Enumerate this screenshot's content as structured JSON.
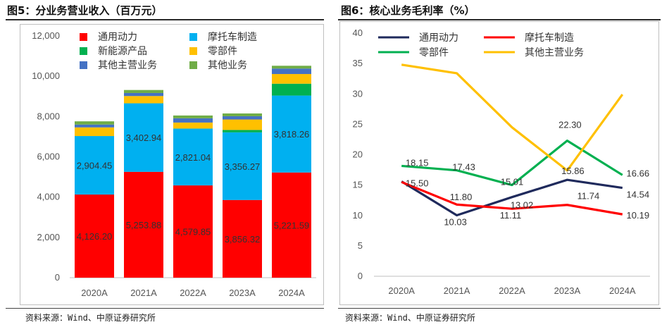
{
  "left": {
    "title": "图5：分业务营业收入（百万元）",
    "source": "资料来源：Wind、中原证券研究所"
  },
  "right": {
    "title": "图6：核心业务毛利率（%）",
    "source": "资料来源：Wind、中原证券研究所"
  },
  "chart_data": [
    {
      "type": "bar",
      "stacked": true,
      "categories": [
        "2020A",
        "2021A",
        "2022A",
        "2023A",
        "2024A"
      ],
      "ylim": [
        0,
        12000
      ],
      "yticks": [
        0,
        2000,
        4000,
        6000,
        8000,
        10000,
        12000
      ],
      "ytick_labels": [
        "0",
        "2,000",
        "4,000",
        "6,000",
        "8,000",
        "10,000",
        "12,000"
      ],
      "legend_position": "top-left",
      "series": [
        {
          "name": "通用动力",
          "color": "#ff0000",
          "values": [
            4126.2,
            5253.88,
            4579.85,
            3856.32,
            5221.59
          ],
          "labels": [
            "4,126.20",
            "5,253.88",
            "4,579.85",
            "3,856.32",
            "5,221.59"
          ]
        },
        {
          "name": "摩托车制造",
          "color": "#00b0f0",
          "values": [
            2904.45,
            3402.94,
            2821.04,
            3356.27,
            3818.26
          ],
          "labels": [
            "2,904.45",
            "3,402.94",
            "2,821.04",
            "3,356.27",
            "3,818.26"
          ]
        },
        {
          "name": "新能源产品",
          "color": "#00b050",
          "values": [
            0,
            0,
            0,
            120,
            590
          ]
        },
        {
          "name": "零部件",
          "color": "#ffc000",
          "values": [
            430,
            360,
            300,
            520,
            480
          ]
        },
        {
          "name": "其他主营业务",
          "color": "#4472c4",
          "values": [
            140,
            150,
            210,
            160,
            270
          ]
        },
        {
          "name": "其他业务",
          "color": "#70ad47",
          "values": [
            160,
            150,
            140,
            140,
            140
          ]
        }
      ]
    },
    {
      "type": "line",
      "categories": [
        "2020A",
        "2021A",
        "2022A",
        "2023A",
        "2024A"
      ],
      "ylim": [
        0,
        40
      ],
      "yticks": [
        0,
        5,
        10,
        15,
        20,
        25,
        30,
        35,
        40
      ],
      "legend_position": "top",
      "series": [
        {
          "name": "通用动力",
          "color": "#1f2a5c",
          "values": [
            15.6,
            10.03,
            13.02,
            15.86,
            14.54
          ],
          "labels": [
            "",
            "10.03",
            "13.02",
            "15.86",
            "14.54"
          ]
        },
        {
          "name": "摩托车制造",
          "color": "#ff0000",
          "values": [
            15.5,
            11.8,
            11.11,
            11.74,
            10.19
          ],
          "labels": [
            "15.50",
            "11.80",
            "11.11",
            "11.74",
            "10.19"
          ]
        },
        {
          "name": "零部件",
          "color": "#00b050",
          "values": [
            18.15,
            17.43,
            15.01,
            22.3,
            16.66
          ],
          "labels": [
            "18.15",
            "17.43",
            "15.01",
            "22.30",
            "16.66"
          ]
        },
        {
          "name": "其他主营业务",
          "color": "#ffc000",
          "values": [
            34.8,
            33.4,
            24.5,
            17.4,
            29.9
          ],
          "labels": [
            "",
            "",
            "",
            "",
            ""
          ]
        }
      ]
    }
  ]
}
